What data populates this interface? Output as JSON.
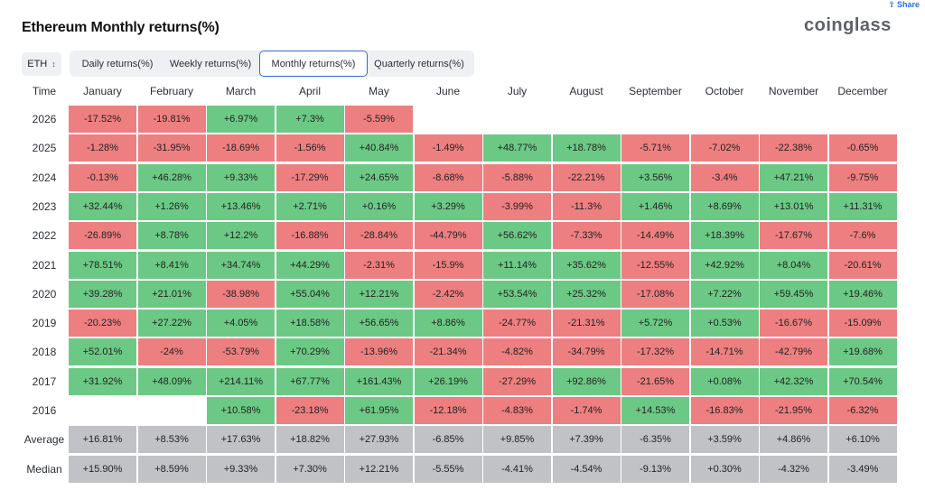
{
  "share_label": "Share",
  "title": "Ethereum Monthly returns(%)",
  "logo": "coinglass",
  "asset": {
    "value": "ETH",
    "icon": "chevron-up-down-icon"
  },
  "tabs": [
    {
      "label": "Daily returns(%)",
      "active": false
    },
    {
      "label": "Weekly returns(%)",
      "active": false
    },
    {
      "label": "Monthly returns(%)",
      "active": true
    },
    {
      "label": "Quarterly returns(%)",
      "active": false
    }
  ],
  "colors": {
    "positive": "#6cc985",
    "negative": "#ee7f80",
    "stat": "#c0c2c6",
    "active_tab": "#2d6bd6"
  },
  "table": {
    "time_header": "Time",
    "months": [
      "January",
      "February",
      "March",
      "April",
      "May",
      "June",
      "July",
      "August",
      "September",
      "October",
      "November",
      "December"
    ],
    "rows": [
      {
        "year": "2026",
        "values": [
          "-17.52%",
          "-19.81%",
          "+6.97%",
          "+7.3%",
          "-5.59%",
          "",
          "",
          "",
          "",
          "",
          "",
          ""
        ]
      },
      {
        "year": "2025",
        "values": [
          "-1.28%",
          "-31.95%",
          "-18.69%",
          "-1.56%",
          "+40.84%",
          "-1.49%",
          "+48.77%",
          "+18.78%",
          "-5.71%",
          "-7.02%",
          "-22.38%",
          "-0.65%"
        ]
      },
      {
        "year": "2024",
        "values": [
          "-0.13%",
          "+46.28%",
          "+9.33%",
          "-17.29%",
          "+24.65%",
          "-8.68%",
          "-5.88%",
          "-22.21%",
          "+3.56%",
          "-3.4%",
          "+47.21%",
          "-9.75%"
        ]
      },
      {
        "year": "2023",
        "values": [
          "+32.44%",
          "+1.26%",
          "+13.46%",
          "+2.71%",
          "+0.16%",
          "+3.29%",
          "-3.99%",
          "-11.3%",
          "+1.46%",
          "+8.69%",
          "+13.01%",
          "+11.31%"
        ]
      },
      {
        "year": "2022",
        "values": [
          "-26.89%",
          "+8.78%",
          "+12.2%",
          "-16.88%",
          "-28.84%",
          "-44.79%",
          "+56.62%",
          "-7.33%",
          "-14.49%",
          "+18.39%",
          "-17.67%",
          "-7.6%"
        ]
      },
      {
        "year": "2021",
        "values": [
          "+78.51%",
          "+8.41%",
          "+34.74%",
          "+44.29%",
          "-2.31%",
          "-15.9%",
          "+11.14%",
          "+35.62%",
          "-12.55%",
          "+42.92%",
          "+8.04%",
          "-20.61%"
        ]
      },
      {
        "year": "2020",
        "values": [
          "+39.28%",
          "+21.01%",
          "-38.98%",
          "+55.04%",
          "+12.21%",
          "-2.42%",
          "+53.54%",
          "+25.32%",
          "-17.08%",
          "+7.22%",
          "+59.45%",
          "+19.46%"
        ]
      },
      {
        "year": "2019",
        "values": [
          "-20.23%",
          "+27.22%",
          "+4.05%",
          "+18.58%",
          "+56.65%",
          "+8.86%",
          "-24.77%",
          "-21.31%",
          "+5.72%",
          "+0.53%",
          "-16.67%",
          "-15.09%"
        ]
      },
      {
        "year": "2018",
        "values": [
          "+52.01%",
          "-24%",
          "-53.79%",
          "+70.29%",
          "-13.96%",
          "-21.34%",
          "-4.82%",
          "-34.79%",
          "-17.32%",
          "-14.71%",
          "-42.79%",
          "+19.68%"
        ]
      },
      {
        "year": "2017",
        "values": [
          "+31.92%",
          "+48.09%",
          "+214.11%",
          "+67.77%",
          "+161.43%",
          "+26.19%",
          "-27.29%",
          "+92.86%",
          "-21.65%",
          "+0.08%",
          "+42.32%",
          "+70.54%"
        ]
      },
      {
        "year": "2016",
        "values": [
          "",
          "",
          "+10.58%",
          "-23.18%",
          "+61.95%",
          "-12.18%",
          "-4.83%",
          "-1.74%",
          "+14.53%",
          "-16.83%",
          "-21.95%",
          "-6.32%"
        ]
      }
    ],
    "stats": [
      {
        "label": "Average",
        "values": [
          "+16.81%",
          "+8.53%",
          "+17.63%",
          "+18.82%",
          "+27.93%",
          "-6.85%",
          "+9.85%",
          "+7.39%",
          "-6.35%",
          "+3.59%",
          "+4.86%",
          "+6.10%"
        ]
      },
      {
        "label": "Median",
        "values": [
          "+15.90%",
          "+8.59%",
          "+9.33%",
          "+7.30%",
          "+12.21%",
          "-5.55%",
          "-4.41%",
          "-4.54%",
          "-9.13%",
          "+0.30%",
          "-4.32%",
          "-3.49%"
        ]
      }
    ]
  }
}
